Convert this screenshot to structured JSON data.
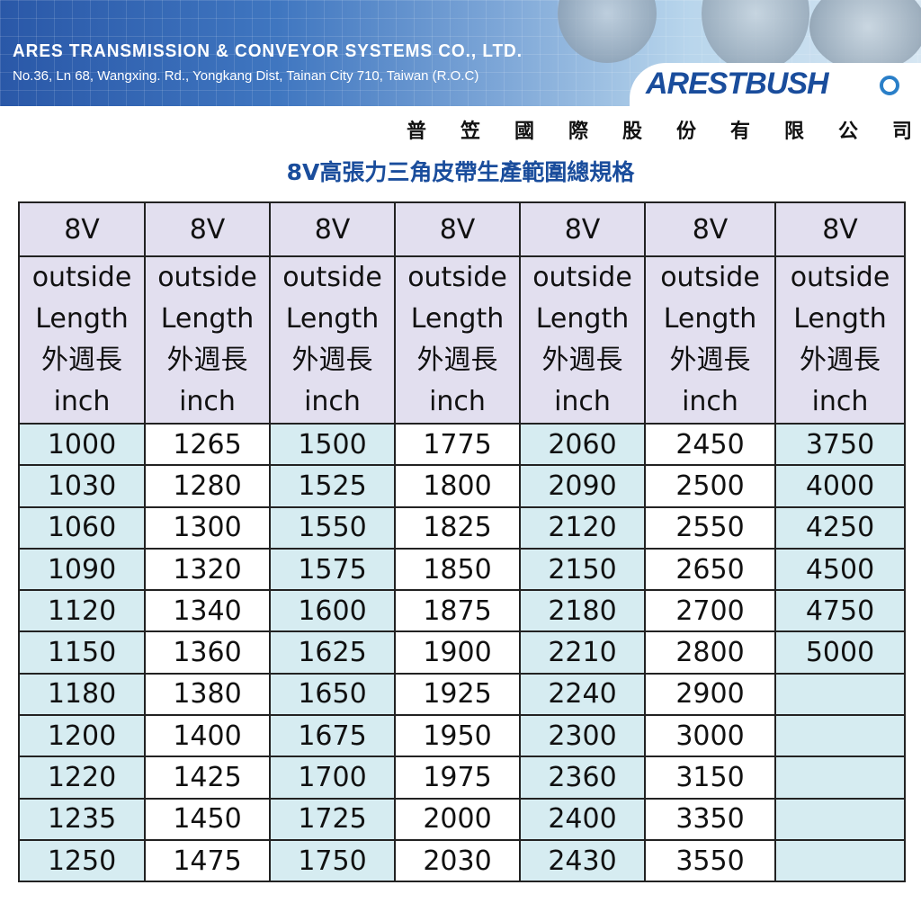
{
  "header": {
    "company_en": "ARES TRANSMISSION & CONVEYOR SYSTEMS CO., LTD.",
    "address": "No.36, Ln 68, Wangxing. Rd., Yongkang Dist, Tainan City 710, Taiwan (R.O.C)",
    "logo": "ARESTBUSH",
    "company_cn": "普笠國際股份有限公司"
  },
  "title": "8V高張力三角皮帶生產範圍總規格",
  "table": {
    "columns": [
      {
        "type": "8V",
        "desc_en1": "outside",
        "desc_en2": "Length",
        "desc_cn": "外週長",
        "unit": "inch",
        "values": [
          "1000",
          "1030",
          "1060",
          "1090",
          "1120",
          "1150",
          "1180",
          "1200",
          "1220",
          "1235",
          "1250"
        ]
      },
      {
        "type": "8V",
        "desc_en1": "outside",
        "desc_en2": "Length",
        "desc_cn": "外週長",
        "unit": "inch",
        "values": [
          "1265",
          "1280",
          "1300",
          "1320",
          "1340",
          "1360",
          "1380",
          "1400",
          "1425",
          "1450",
          "1475"
        ]
      },
      {
        "type": "8V",
        "desc_en1": "outside",
        "desc_en2": "Length",
        "desc_cn": "外週長",
        "unit": "inch",
        "values": [
          "1500",
          "1525",
          "1550",
          "1575",
          "1600",
          "1625",
          "1650",
          "1675",
          "1700",
          "1725",
          "1750"
        ]
      },
      {
        "type": "8V",
        "desc_en1": "outside",
        "desc_en2": "Length",
        "desc_cn": "外週長",
        "unit": "inch",
        "values": [
          "1775",
          "1800",
          "1825",
          "1850",
          "1875",
          "1900",
          "1925",
          "1950",
          "1975",
          "2000",
          "2030"
        ]
      },
      {
        "type": "8V",
        "desc_en1": "outside",
        "desc_en2": "Length",
        "desc_cn": "外週長",
        "unit": "inch",
        "values": [
          "2060",
          "2090",
          "2120",
          "2150",
          "2180",
          "2210",
          "2240",
          "2300",
          "2360",
          "2400",
          "2430"
        ]
      },
      {
        "type": "8V",
        "desc_en1": "outside",
        "desc_en2": "Length",
        "desc_cn": "外週長",
        "unit": "inch",
        "values": [
          "2450",
          "2500",
          "2550",
          "2650",
          "2700",
          "2800",
          "2900",
          "3000",
          "3150",
          "3350",
          "3550"
        ]
      },
      {
        "type": "8V",
        "desc_en1": "outside",
        "desc_en2": "Length",
        "desc_cn": "外週長",
        "unit": "inch",
        "values": [
          "3750",
          "4000",
          "4250",
          "4500",
          "4750",
          "5000",
          "",
          "",
          "",
          "",
          ""
        ]
      }
    ]
  }
}
